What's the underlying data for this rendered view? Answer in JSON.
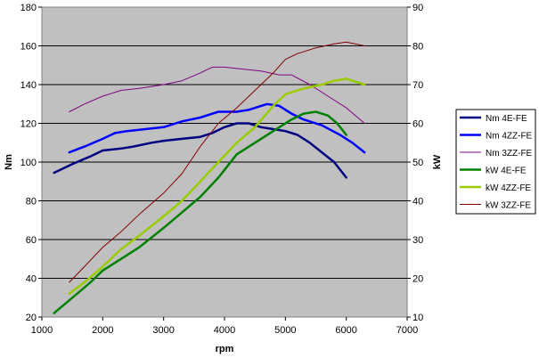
{
  "chart_data": {
    "type": "line",
    "xlabel": "rpm",
    "ylabel_left": "Nm",
    "ylabel_right": "kW",
    "xlim": [
      1000,
      7000
    ],
    "ylim_left": [
      20,
      180
    ],
    "ylim_right": [
      10,
      90
    ],
    "x_ticks": [
      1000,
      2000,
      3000,
      4000,
      5000,
      6000,
      7000
    ],
    "y_left_ticks": [
      20,
      40,
      60,
      80,
      100,
      120,
      140,
      160,
      180
    ],
    "y_right_ticks": [
      10,
      20,
      30,
      40,
      50,
      60,
      70,
      80,
      90
    ],
    "grid": "horizontal",
    "plot_background": "#c0c0c0",
    "legend_position": "right",
    "series": [
      {
        "name": "Nm 4E-FE",
        "axis": "left",
        "color": "#000080",
        "width": 2.5,
        "x": [
          1200,
          1500,
          1800,
          2000,
          2300,
          2500,
          2800,
          3000,
          3300,
          3600,
          3800,
          4000,
          4200,
          4400,
          4600,
          4800,
          5000,
          5200,
          5400,
          5600,
          5800,
          6000
        ],
        "y": [
          94.5,
          99,
          103,
          106,
          107,
          108,
          110,
          111,
          112,
          113,
          115,
          118,
          120,
          120,
          118,
          117,
          116,
          114,
          110,
          105,
          100,
          92
        ]
      },
      {
        "name": "Nm 4ZZ-FE",
        "axis": "left",
        "color": "#0000ff",
        "width": 2.5,
        "x": [
          1450,
          1700,
          2000,
          2200,
          2400,
          2700,
          3000,
          3300,
          3600,
          3900,
          4200,
          4400,
          4700,
          4900,
          5100,
          5300,
          5600,
          5900,
          6100,
          6300
        ],
        "y": [
          105,
          108,
          112,
          115,
          116,
          117,
          118,
          121,
          123,
          126,
          126,
          127,
          130,
          129,
          125,
          122,
          119,
          114,
          110,
          105
        ]
      },
      {
        "name": "Nm 3ZZ-FE",
        "axis": "left",
        "color": "#800080",
        "width": 1,
        "x": [
          1450,
          1700,
          2000,
          2300,
          2600,
          3000,
          3300,
          3600,
          3800,
          4000,
          4300,
          4600,
          4900,
          5100,
          5400,
          5700,
          6000,
          6300
        ],
        "y": [
          126,
          130,
          134,
          137,
          138,
          140,
          142,
          146,
          149,
          149,
          148,
          147,
          145,
          145,
          140,
          134,
          128,
          120
        ]
      },
      {
        "name": "kW 4E-FE",
        "axis": "right",
        "color": "#008000",
        "width": 2.5,
        "x": [
          1200,
          1500,
          1800,
          2000,
          2300,
          2600,
          3000,
          3300,
          3600,
          3900,
          4200,
          4500,
          4800,
          5100,
          5300,
          5500,
          5700,
          5850,
          6000
        ],
        "y": [
          11,
          15,
          19,
          22,
          25,
          28,
          33,
          37,
          41,
          46,
          52,
          55,
          58,
          61,
          62.5,
          63,
          62,
          60,
          57
        ]
      },
      {
        "name": "kW 4ZZ-FE",
        "axis": "right",
        "color": "#99cc00",
        "width": 2.5,
        "x": [
          1450,
          1700,
          2000,
          2300,
          2600,
          3000,
          3300,
          3600,
          3900,
          4200,
          4500,
          4800,
          5000,
          5300,
          5600,
          5800,
          6000,
          6300
        ],
        "y": [
          16,
          19,
          23,
          27.5,
          31,
          36,
          40,
          45,
          50,
          55,
          59,
          64.5,
          67.5,
          69,
          70,
          71,
          71.5,
          70
        ]
      },
      {
        "name": "kW 3ZZ-FE",
        "axis": "right",
        "color": "#800000",
        "width": 1,
        "x": [
          1450,
          1700,
          2000,
          2300,
          2600,
          3000,
          3300,
          3600,
          3900,
          4200,
          4500,
          4800,
          5000,
          5200,
          5500,
          5800,
          6000,
          6300
        ],
        "y": [
          19,
          23,
          28,
          32,
          36.5,
          42,
          47,
          54,
          60,
          64,
          68.5,
          73,
          76.5,
          78,
          79.5,
          80.5,
          81,
          80
        ]
      }
    ]
  }
}
